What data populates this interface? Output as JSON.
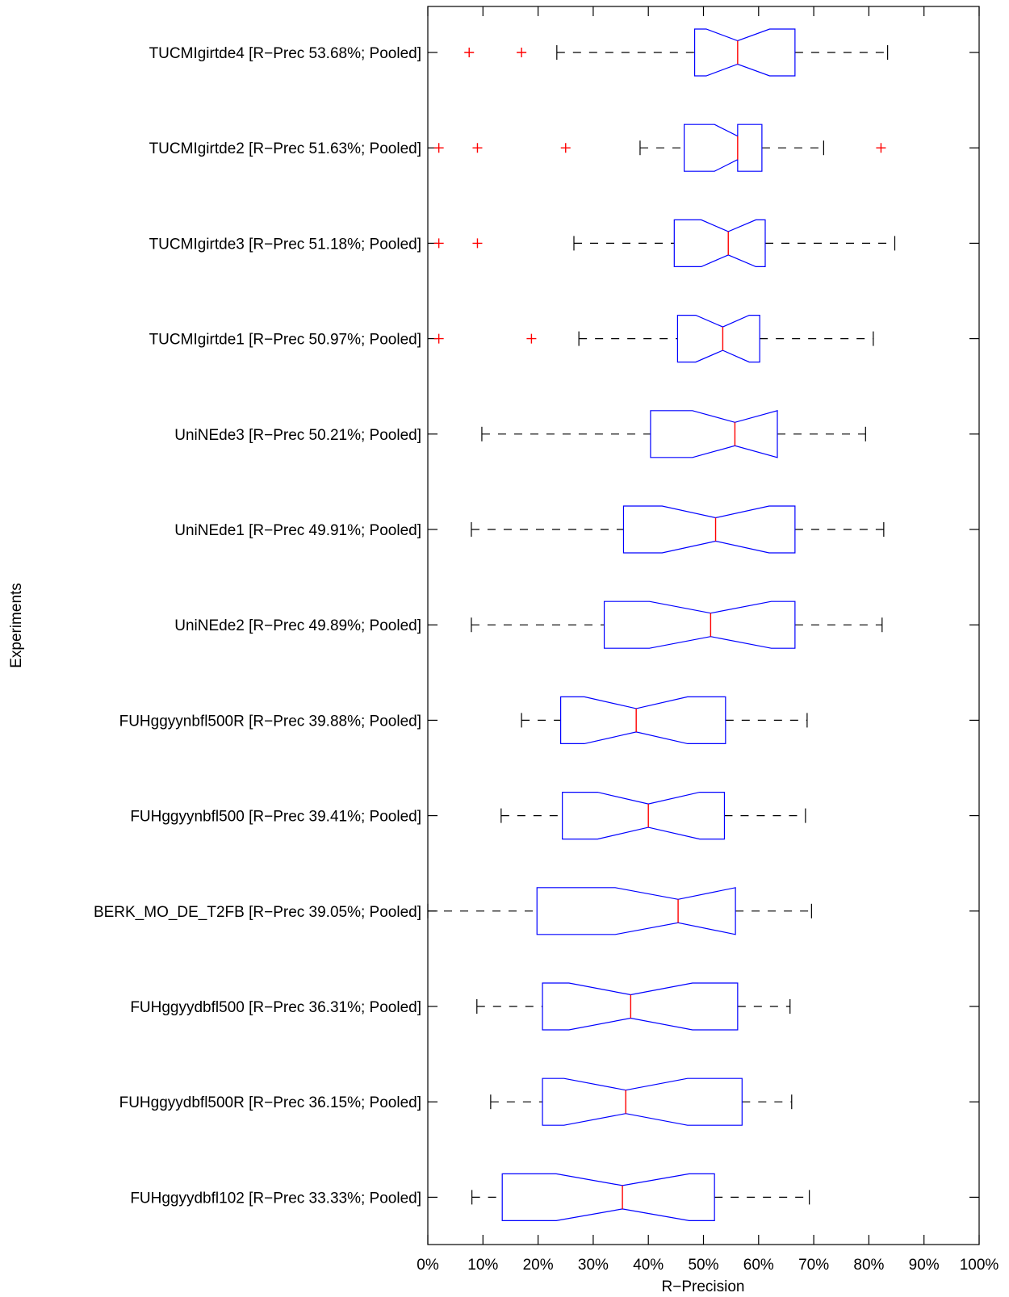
{
  "chart_data": {
    "type": "boxplot",
    "orientation": "horizontal",
    "notched": true,
    "xlabel": "R−Precision",
    "ylabel": "Experiments",
    "xlim": [
      0,
      100
    ],
    "xticks": [
      0,
      10,
      20,
      30,
      40,
      50,
      60,
      70,
      80,
      90,
      100
    ],
    "xtick_labels": [
      "0%",
      "10%",
      "20%",
      "30%",
      "40%",
      "50%",
      "60%",
      "70%",
      "80%",
      "90%",
      "100%"
    ],
    "grid": false,
    "colors": {
      "box": "#0000ff",
      "median": "#ff0000",
      "whisker": "#000000",
      "outlier": "#ff0000"
    },
    "experiments": [
      {
        "label": "TUCMIgirtde4 [R−Prec 53.68%; Pooled]",
        "whisker_low": 23.4,
        "q1": 48.4,
        "notch_low": 50.5,
        "median": 56.2,
        "notch_high": 62.0,
        "q3": 66.6,
        "whisker_high": 83.4,
        "outliers": [
          7.5,
          17.0
        ]
      },
      {
        "label": "TUCMIgirtde2 [R−Prec 51.63%; Pooled]",
        "whisker_low": 38.5,
        "q1": 46.5,
        "notch_low": 52.0,
        "median": 56.2,
        "notch_high": 56.2,
        "q3": 60.6,
        "whisker_high": 71.8,
        "outliers": [
          2.0,
          9.0,
          25.0,
          82.2
        ]
      },
      {
        "label": "TUCMIgirtde3 [R−Prec 51.18%; Pooled]",
        "whisker_low": 26.5,
        "q1": 44.7,
        "notch_low": 49.6,
        "median": 54.5,
        "notch_high": 59.5,
        "q3": 61.2,
        "whisker_high": 84.7,
        "outliers": [
          2.0,
          9.0
        ]
      },
      {
        "label": "TUCMIgirtde1 [R−Prec 50.97%; Pooled]",
        "whisker_low": 27.4,
        "q1": 45.3,
        "notch_low": 48.6,
        "median": 53.5,
        "notch_high": 58.3,
        "q3": 60.2,
        "whisker_high": 80.8,
        "outliers": [
          2.0,
          18.8
        ]
      },
      {
        "label": "UniNEde3 [R−Prec 50.21%; Pooled]",
        "whisker_low": 9.8,
        "q1": 40.4,
        "notch_low": 48.0,
        "median": 55.7,
        "notch_high": 63.4,
        "q3": 63.4,
        "whisker_high": 79.4,
        "outliers": []
      },
      {
        "label": "UniNEde1 [R−Prec 49.91%; Pooled]",
        "whisker_low": 7.9,
        "q1": 35.5,
        "notch_low": 42.5,
        "median": 52.2,
        "notch_high": 61.9,
        "q3": 66.6,
        "whisker_high": 82.7,
        "outliers": []
      },
      {
        "label": "UniNEde2 [R−Prec 49.89%; Pooled]",
        "whisker_low": 7.9,
        "q1": 32.0,
        "notch_low": 40.2,
        "median": 51.3,
        "notch_high": 62.3,
        "q3": 66.6,
        "whisker_high": 82.4,
        "outliers": []
      },
      {
        "label": "FUHggyynbfl500R [R−Prec 39.88%; Pooled]",
        "whisker_low": 17.0,
        "q1": 24.1,
        "notch_low": 28.4,
        "median": 37.8,
        "notch_high": 47.1,
        "q3": 54.0,
        "whisker_high": 68.8,
        "outliers": []
      },
      {
        "label": "FUHggyynbfl500 [R−Prec 39.41%; Pooled]",
        "whisker_low": 13.3,
        "q1": 24.4,
        "notch_low": 30.8,
        "median": 40.0,
        "notch_high": 49.3,
        "q3": 53.8,
        "whisker_high": 68.5,
        "outliers": []
      },
      {
        "label": "BERK_MO_DE_T2FB [R−Prec 39.05%; Pooled]",
        "whisker_low": 0.0,
        "q1": 19.8,
        "notch_low": 34.0,
        "median": 45.4,
        "notch_high": 55.8,
        "q3": 55.8,
        "whisker_high": 69.6,
        "outliers": []
      },
      {
        "label": "FUHggyydbfl500 [R−Prec 36.31%; Pooled]",
        "whisker_low": 8.9,
        "q1": 20.8,
        "notch_low": 25.6,
        "median": 36.8,
        "notch_high": 48.0,
        "q3": 56.2,
        "whisker_high": 65.7,
        "outliers": []
      },
      {
        "label": "FUHggyydbfl500R [R−Prec 36.15%; Pooled]",
        "whisker_low": 11.4,
        "q1": 20.8,
        "notch_low": 24.7,
        "median": 35.9,
        "notch_high": 47.1,
        "q3": 57.0,
        "whisker_high": 66.0,
        "outliers": []
      },
      {
        "label": "FUHggyydbfl102 [R−Prec 33.33%; Pooled]",
        "whisker_low": 8.0,
        "q1": 13.5,
        "notch_low": 23.3,
        "median": 35.3,
        "notch_high": 47.4,
        "q3": 52.0,
        "whisker_high": 69.2,
        "outliers": []
      }
    ]
  }
}
